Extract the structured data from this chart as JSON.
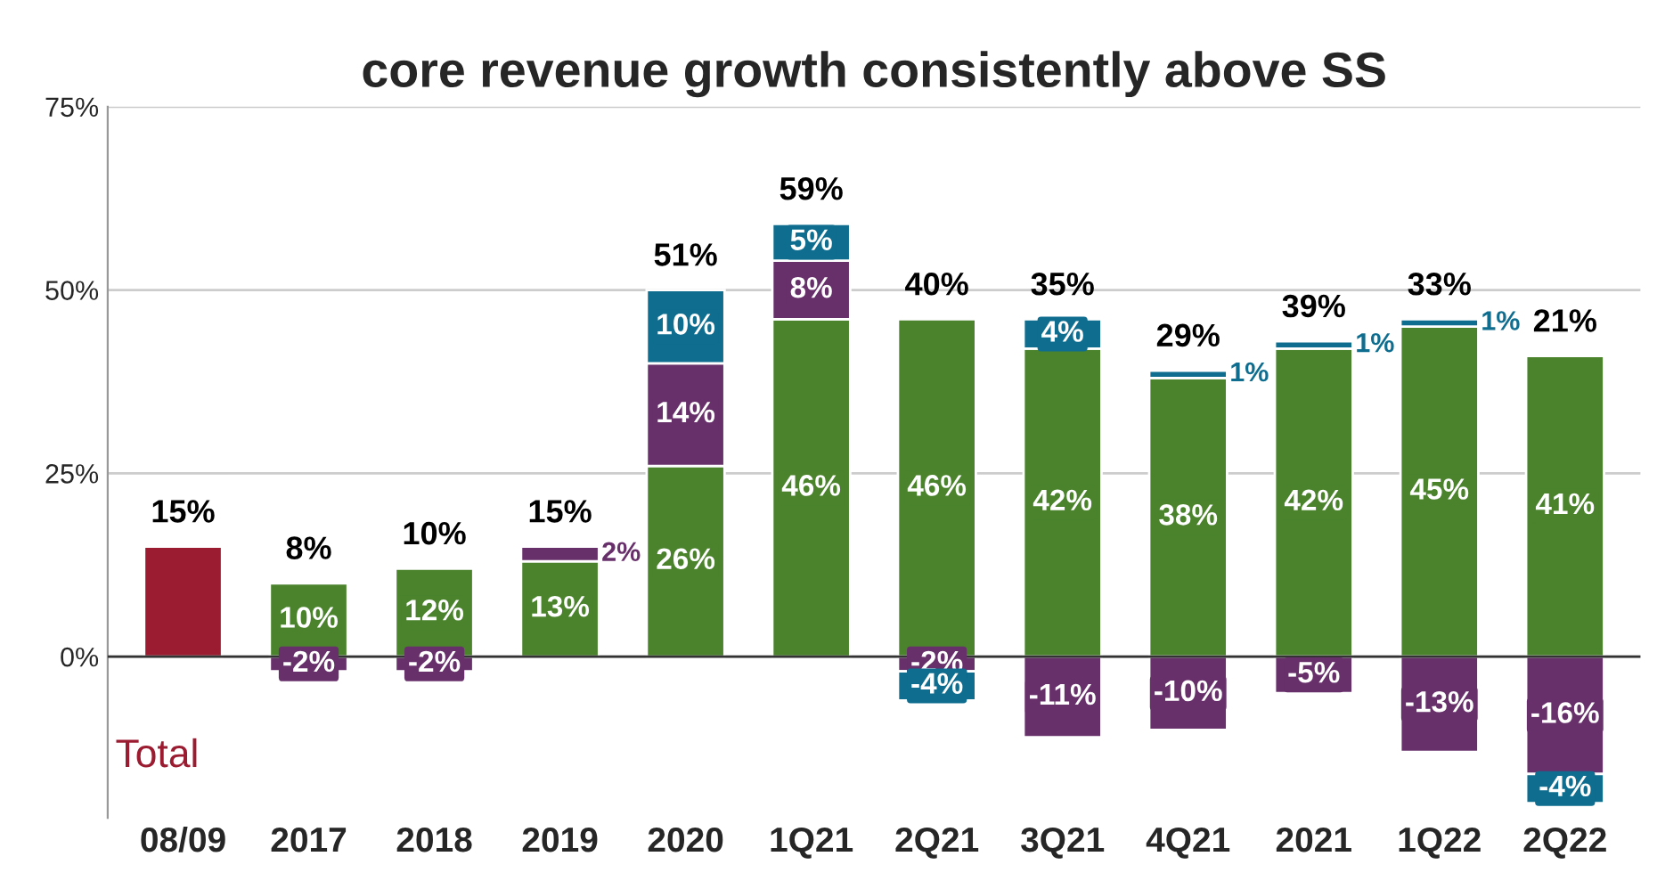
{
  "chart_data": {
    "type": "bar",
    "title": "core revenue growth consistently above SS",
    "categories": [
      "08/09",
      "2017",
      "2018",
      "2019",
      "2020",
      "1Q21",
      "2Q21",
      "3Q21",
      "4Q21",
      "2021",
      "1Q22",
      "2Q22"
    ],
    "stacked": true,
    "series": [
      {
        "color": "#9b1b30",
        "values": [
          15,
          null,
          null,
          null,
          null,
          null,
          null,
          null,
          null,
          null,
          null,
          null
        ]
      },
      {
        "color": "#4a832c",
        "values": [
          null,
          10,
          12,
          13,
          26,
          46,
          46,
          42,
          38,
          42,
          45,
          41
        ],
        "value_labels": [
          null,
          "10%",
          "12%",
          "13%",
          "26%",
          "46%",
          "46%",
          "42%",
          "38%",
          "42%",
          "45%",
          "41%"
        ]
      },
      {
        "color": "#68306b",
        "values": [
          null,
          -2,
          -2,
          2,
          14,
          8,
          -2,
          -11,
          -10,
          -5,
          -13,
          -16
        ],
        "value_labels": [
          null,
          "-2%",
          "-2%",
          "2%",
          "14%",
          "8%",
          "-2%",
          "-11%",
          "-10%",
          "-5%",
          "-13%",
          "-16%"
        ]
      },
      {
        "color": "#0f6e8f",
        "values": [
          null,
          null,
          null,
          null,
          10,
          5,
          -4,
          4,
          1,
          1,
          1,
          -4
        ],
        "value_labels": [
          null,
          null,
          null,
          null,
          "10%",
          "5%",
          "-4%",
          "4%",
          "1%",
          "1%",
          "1%",
          "-4%"
        ]
      }
    ],
    "totals": [
      "15%",
      "8%",
      "10%",
      "15%",
      "51%",
      "59%",
      "40%",
      "35%",
      "29%",
      "39%",
      "33%",
      "21%"
    ],
    "ylim": [
      -22,
      75
    ],
    "yticks": [
      {
        "value": 0,
        "label": "0%"
      },
      {
        "value": 25,
        "label": "25%"
      },
      {
        "value": 50,
        "label": "50%"
      },
      {
        "value": 75,
        "label": "75%"
      }
    ],
    "grid": "y",
    "annotations": [
      "Total"
    ]
  }
}
